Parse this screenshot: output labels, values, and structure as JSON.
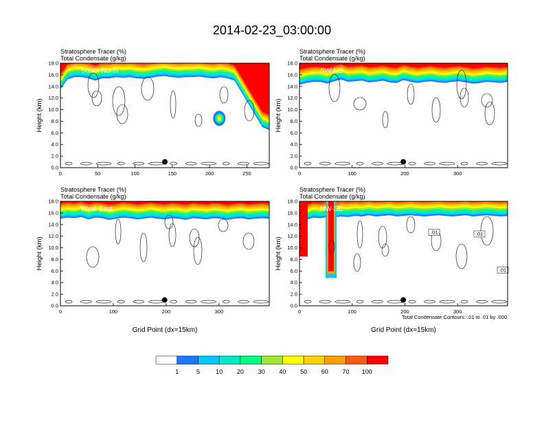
{
  "figure_title": "2014-02-23_03:00:00",
  "colors": {
    "levels": [
      "#ffffff",
      "#1e78ff",
      "#00c8ff",
      "#00e8c8",
      "#00ff80",
      "#00e000",
      "#a0e632",
      "#ffff00",
      "#ffd200",
      "#ffa000",
      "#ff5a14",
      "#ff0000"
    ],
    "contour": "#000000",
    "marker": "#000000"
  },
  "colorbar": {
    "labels": [
      "1",
      "5",
      "10",
      "20",
      "30",
      "40",
      "50",
      "60",
      "70",
      "100"
    ]
  },
  "footnote": "Total Condensate Contours: .01 to .01 by .000",
  "chart_data": [
    {
      "type": "heatmap",
      "panel": "South-North",
      "title_lines": [
        "Stratosphere Tracer   (%)",
        "Total Condensate   (g/kg)"
      ],
      "ylabel": "Height (km)",
      "xlabel": "",
      "xlim": [
        0,
        280
      ],
      "ylim": [
        0,
        18
      ],
      "xticks": [
        "0",
        "50",
        "100",
        "150",
        "200",
        "250"
      ],
      "yticks": [
        "0.0",
        "2.0",
        "4.0",
        "6.0",
        "8.0",
        "10.0",
        "12.0",
        "14.0",
        "16.0",
        "18.0"
      ],
      "tracer_top_km": [
        13.5,
        15.2,
        15.6,
        15.6,
        15.4,
        15.0,
        15.4,
        15.4,
        15.6,
        15.5,
        15.6,
        15.4,
        15.3,
        15.5,
        15.7,
        15.8,
        15.6,
        15.5,
        15.6,
        15.6,
        15.7,
        15.5,
        15.4,
        15.6,
        15.4,
        15.0,
        13.0,
        11.0,
        9.0,
        7.0,
        6.5
      ],
      "blob": {
        "x": 213,
        "y": 8.5
      },
      "contour_labels": [],
      "marker": {
        "x": 140,
        "y": 1.0
      }
    },
    {
      "type": "heatmap",
      "panel": "SW-NE",
      "title_lines": [
        "Stratosphere Tracer   (%)",
        "Total Condensate   (g/kg)"
      ],
      "ylabel": "Height (km)",
      "xlabel": "",
      "xlim": [
        0,
        395
      ],
      "ylim": [
        0,
        18
      ],
      "xticks": [
        "0",
        "100",
        "200",
        "300"
      ],
      "yticks": [
        "0.0",
        "2.0",
        "4.0",
        "6.0",
        "8.0",
        "10.0",
        "12.0",
        "14.0",
        "16.0",
        "18.0"
      ],
      "tracer_top_km": [
        14.3,
        14.6,
        14.8,
        14.8,
        14.5,
        14.9,
        15.2,
        14.8,
        14.9,
        15.0,
        14.7,
        14.8,
        15.0,
        14.7,
        14.6,
        15.1,
        14.8,
        14.6,
        14.8,
        14.9,
        14.7,
        14.6,
        14.8,
        14.9,
        14.7,
        14.5,
        14.6,
        14.8,
        14.7,
        14.6,
        14.8
      ],
      "blob": null,
      "contour_labels": [],
      "marker": {
        "x": 197,
        "y": 1.0
      }
    },
    {
      "type": "heatmap",
      "panel": "West-East",
      "title_lines": [
        "Stratosphere Tracer   (%)",
        "Total Condensate   (g/kg)"
      ],
      "ylabel": "Height (km)",
      "xlabel": "Grid Point (dx=15km)",
      "xlim": [
        0,
        395
      ],
      "ylim": [
        0,
        18
      ],
      "xticks": [
        "0",
        "100",
        "200",
        "300"
      ],
      "yticks": [
        "0.0",
        "2.0",
        "4.0",
        "6.0",
        "8.0",
        "10.0",
        "12.0",
        "14.0",
        "16.0",
        "18.0"
      ],
      "tracer_top_km": [
        15.0,
        15.2,
        15.1,
        15.3,
        14.9,
        15.2,
        15.1,
        14.8,
        15.0,
        15.2,
        15.1,
        14.9,
        15.0,
        15.2,
        15.0,
        14.9,
        15.1,
        15.0,
        14.8,
        15.1,
        15.0,
        14.9,
        15.1,
        15.0,
        14.8,
        15.0,
        15.1,
        14.9,
        15.0,
        15.1,
        15.0
      ],
      "blob": null,
      "contour_labels": [],
      "marker": {
        "x": 197,
        "y": 1.0
      }
    },
    {
      "type": "heatmap",
      "panel": "NW-SE",
      "title_lines": [
        "Stratosphere Tracer   (%)",
        "Total Condensate   (g/kg)"
      ],
      "ylabel": "Height (km)",
      "xlabel": "Grid Point (dx=15km)",
      "xlim": [
        0,
        395
      ],
      "ylim": [
        0,
        18
      ],
      "xticks": [
        "0",
        "100",
        "200",
        "300"
      ],
      "yticks": [
        "0.0",
        "2.0",
        "4.0",
        "6.0",
        "8.0",
        "10.0",
        "12.0",
        "14.0",
        "16.0",
        "18.0"
      ],
      "tracer_top_km": [
        8.5,
        14.8,
        15.2,
        15.1,
        15.3,
        15.2,
        15.4,
        15.3,
        15.5,
        15.4,
        15.6,
        15.4,
        15.5,
        15.6,
        15.4,
        15.5,
        15.6,
        15.5,
        15.4,
        15.5,
        15.6,
        15.5,
        15.4,
        15.5,
        15.6,
        15.4,
        15.5,
        15.6,
        15.5,
        15.4,
        15.5
      ],
      "blob": null,
      "intrusion": {
        "x": 60,
        "bottom_km": 5.5
      },
      "contour_labels": [
        ".01",
        ".01",
        ".01"
      ],
      "marker": {
        "x": 197,
        "y": 1.0
      }
    }
  ]
}
